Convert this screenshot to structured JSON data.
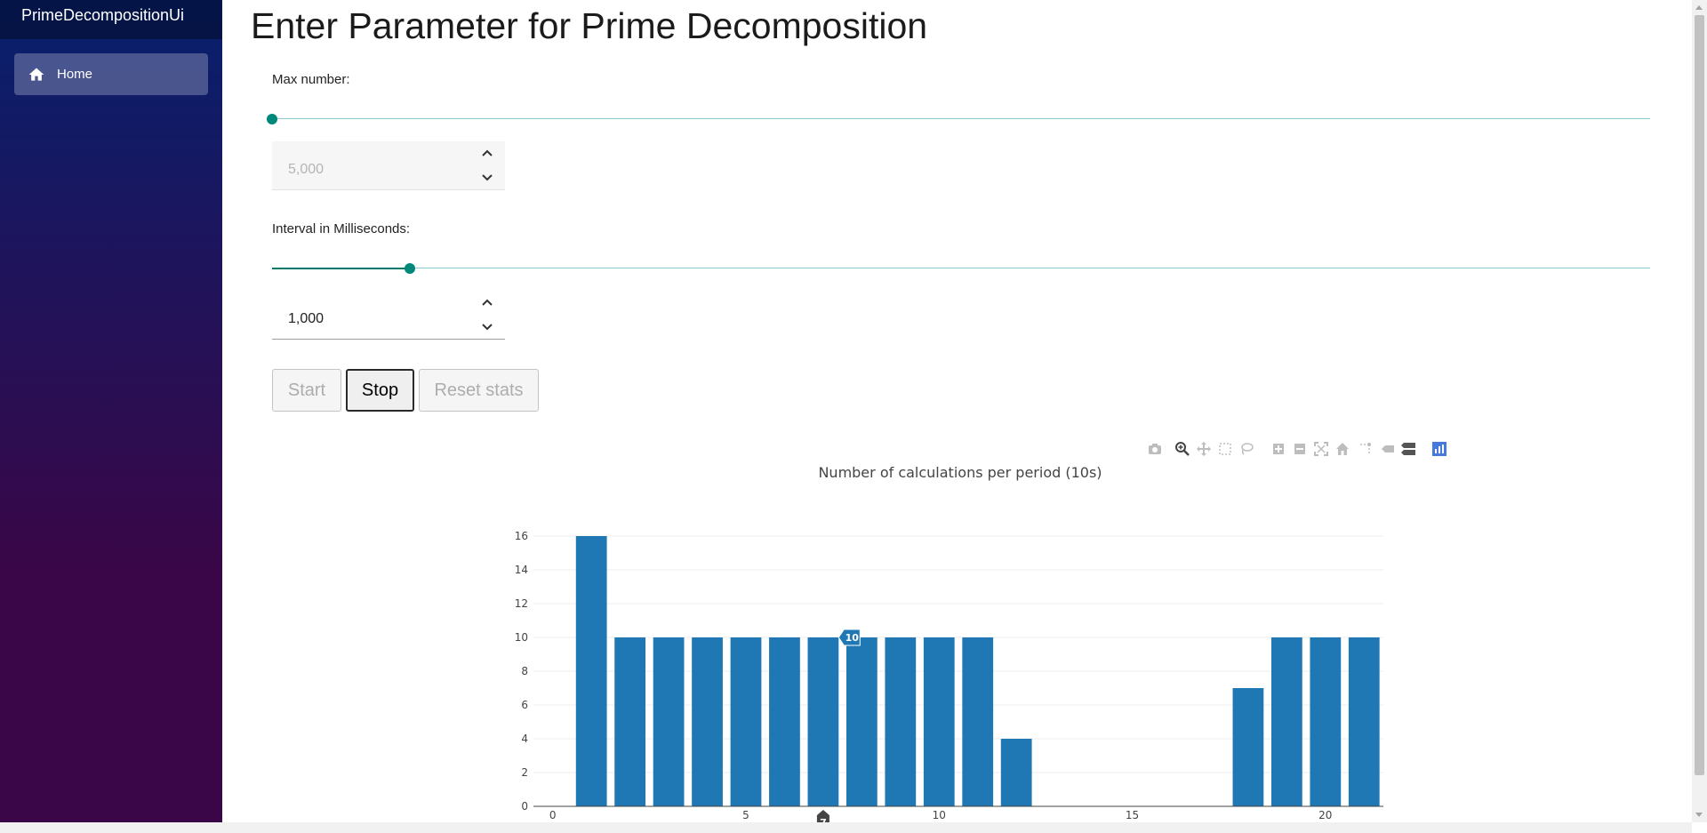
{
  "app": {
    "title": "PrimeDecompositionUi"
  },
  "nav": {
    "items": [
      {
        "label": "Home",
        "icon": "home-icon"
      }
    ]
  },
  "page": {
    "title": "Enter Parameter for Prime Decomposition"
  },
  "max_number": {
    "label": "Max number:",
    "value": "5,000",
    "disabled": true,
    "slider_position": 0.0
  },
  "interval": {
    "label": "Interval in Milliseconds:",
    "value": "1,000",
    "disabled": false,
    "slider_position": 0.1
  },
  "buttons": {
    "start": "Start",
    "stop": "Stop",
    "reset": "Reset stats"
  },
  "modebar": {
    "icons": [
      "camera-icon",
      "zoom-icon",
      "pan-icon",
      "box-select-icon",
      "lasso-select-icon",
      "zoom-in-icon",
      "zoom-out-icon",
      "autoscale-icon",
      "reset-axes-icon",
      "spike-lines-icon",
      "hover-closest-icon",
      "hover-compare-icon",
      "plotly-logo-icon"
    ]
  },
  "chart_data": {
    "type": "bar",
    "title": "Number of calculations per period (10s)",
    "x": [
      1,
      2,
      3,
      4,
      5,
      6,
      7,
      8,
      9,
      10,
      11,
      12,
      18,
      19,
      20,
      21
    ],
    "values": [
      16,
      10,
      10,
      10,
      10,
      10,
      10,
      10,
      10,
      10,
      10,
      4,
      7,
      10,
      10,
      10
    ],
    "xlim": [
      -0.5,
      21.5
    ],
    "ylim": [
      0,
      16
    ],
    "x_ticks": [
      0,
      5,
      10,
      15,
      20
    ],
    "y_ticks": [
      0,
      2,
      4,
      6,
      8,
      10,
      12,
      14,
      16
    ],
    "color": "#1f77b4",
    "grid": true,
    "hover": {
      "x": 7,
      "y": 10,
      "label": "10",
      "xlabel": "7"
    }
  },
  "colors": {
    "accent": "#00897b",
    "bar": "#1f77b4"
  }
}
